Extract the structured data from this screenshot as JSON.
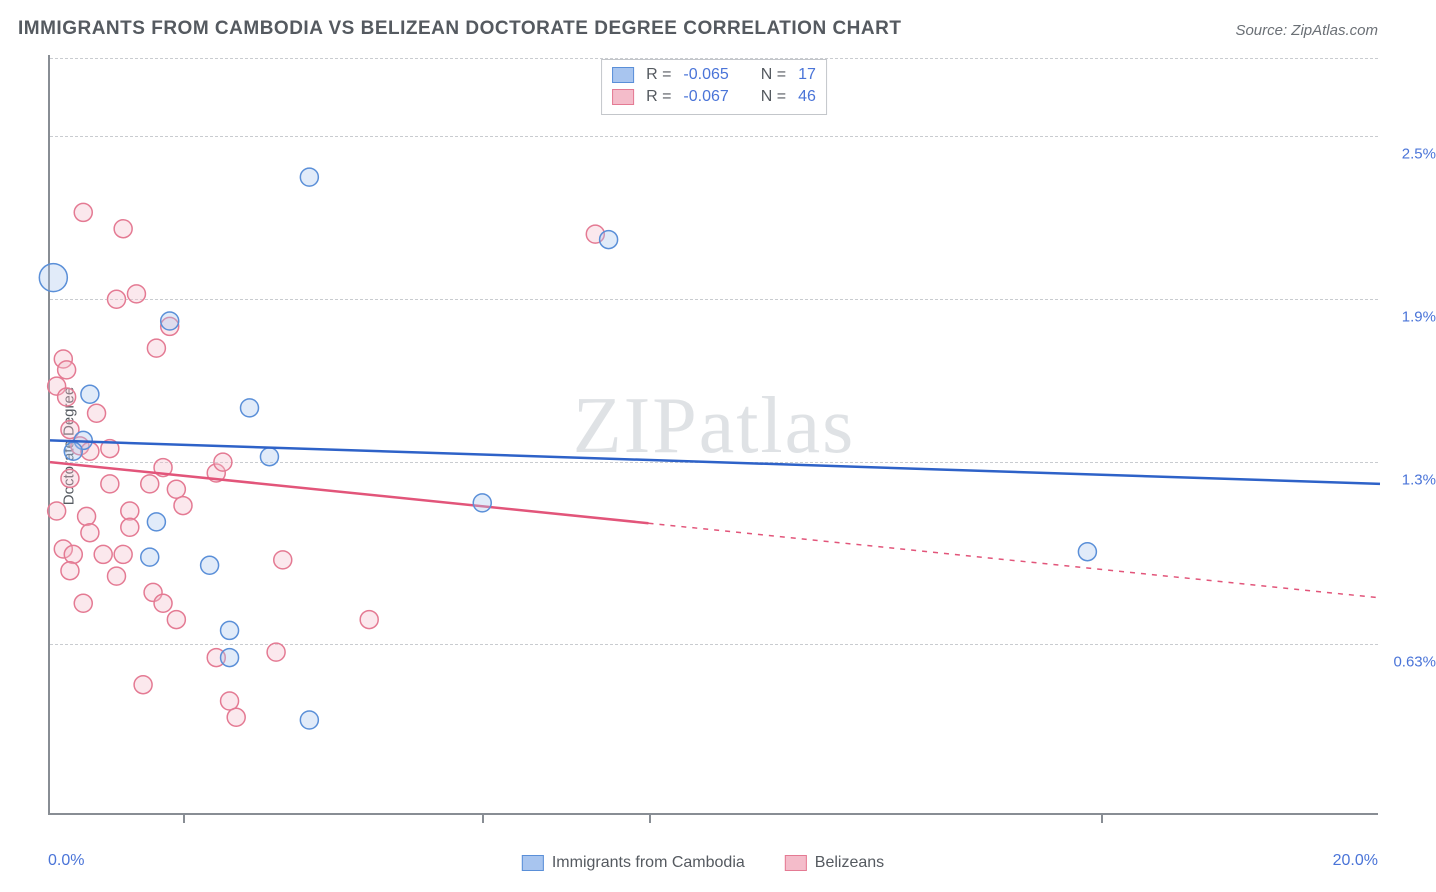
{
  "title": "IMMIGRANTS FROM CAMBODIA VS BELIZEAN DOCTORATE DEGREE CORRELATION CHART",
  "source": "Source: ZipAtlas.com",
  "watermark_a": "ZIP",
  "watermark_b": "atlas",
  "ylabel": "Doctorate Degree",
  "chart": {
    "type": "scatter",
    "x_min": 0.0,
    "x_max": 20.0,
    "y_min": 0.0,
    "y_max": 2.8,
    "x_axis_label_min": "0.0%",
    "x_axis_label_max": "20.0%",
    "y_ticks": [
      {
        "v": 0.63,
        "label": "0.63%"
      },
      {
        "v": 1.3,
        "label": "1.3%"
      },
      {
        "v": 1.9,
        "label": "1.9%"
      },
      {
        "v": 2.5,
        "label": "2.5%"
      }
    ],
    "x_tick_marks": [
      2.0,
      6.5,
      9.0,
      15.8
    ],
    "background_color": "#ffffff",
    "grid_color": "#c9ccd0",
    "axis_color": "#888d94"
  },
  "series": {
    "cambodia": {
      "label": "Immigrants from Cambodia",
      "fill": "#a8c5ef",
      "stroke": "#5a8fd8",
      "line_color": "#2e62c8",
      "r_value": "-0.065",
      "n_value": "17",
      "radius": 9,
      "regression": {
        "x1": 0.0,
        "y1": 1.38,
        "x2": 20.0,
        "y2": 1.22,
        "solid_until_x": 20.0
      },
      "points": [
        {
          "x": 0.05,
          "y": 1.98,
          "r": 14
        },
        {
          "x": 0.6,
          "y": 1.55
        },
        {
          "x": 0.5,
          "y": 1.38
        },
        {
          "x": 1.8,
          "y": 1.82
        },
        {
          "x": 3.0,
          "y": 1.5
        },
        {
          "x": 3.3,
          "y": 1.32
        },
        {
          "x": 3.9,
          "y": 2.35
        },
        {
          "x": 6.5,
          "y": 1.15
        },
        {
          "x": 1.6,
          "y": 1.08
        },
        {
          "x": 1.5,
          "y": 0.95
        },
        {
          "x": 2.4,
          "y": 0.92
        },
        {
          "x": 2.7,
          "y": 0.68
        },
        {
          "x": 2.7,
          "y": 0.58
        },
        {
          "x": 3.9,
          "y": 0.35
        },
        {
          "x": 8.4,
          "y": 2.12
        },
        {
          "x": 15.6,
          "y": 0.97
        },
        {
          "x": 0.35,
          "y": 1.34
        }
      ]
    },
    "belize": {
      "label": "Belizeans",
      "fill": "#f4bcca",
      "stroke": "#e47a93",
      "line_color": "#e2557a",
      "r_value": "-0.067",
      "n_value": "46",
      "radius": 9,
      "regression": {
        "x1": 0.0,
        "y1": 1.3,
        "x2": 20.0,
        "y2": 0.8,
        "solid_until_x": 9.0
      },
      "points": [
        {
          "x": 0.5,
          "y": 2.22
        },
        {
          "x": 1.1,
          "y": 2.16
        },
        {
          "x": 0.2,
          "y": 1.68
        },
        {
          "x": 0.25,
          "y": 1.64
        },
        {
          "x": 0.1,
          "y": 1.58
        },
        {
          "x": 0.3,
          "y": 1.42
        },
        {
          "x": 1.3,
          "y": 1.92
        },
        {
          "x": 1.0,
          "y": 1.9
        },
        {
          "x": 1.6,
          "y": 1.72
        },
        {
          "x": 1.8,
          "y": 1.8
        },
        {
          "x": 0.7,
          "y": 1.48
        },
        {
          "x": 0.45,
          "y": 1.36
        },
        {
          "x": 0.6,
          "y": 1.34
        },
        {
          "x": 0.3,
          "y": 1.24
        },
        {
          "x": 0.9,
          "y": 1.22
        },
        {
          "x": 1.7,
          "y": 1.28
        },
        {
          "x": 1.5,
          "y": 1.22
        },
        {
          "x": 1.9,
          "y": 1.2
        },
        {
          "x": 0.1,
          "y": 1.12
        },
        {
          "x": 0.55,
          "y": 1.1
        },
        {
          "x": 0.6,
          "y": 1.04
        },
        {
          "x": 1.2,
          "y": 1.12
        },
        {
          "x": 1.2,
          "y": 1.06
        },
        {
          "x": 2.0,
          "y": 1.14
        },
        {
          "x": 2.5,
          "y": 1.26
        },
        {
          "x": 2.6,
          "y": 1.3
        },
        {
          "x": 0.2,
          "y": 0.98
        },
        {
          "x": 0.35,
          "y": 0.96
        },
        {
          "x": 0.8,
          "y": 0.96
        },
        {
          "x": 1.1,
          "y": 0.96
        },
        {
          "x": 0.3,
          "y": 0.9
        },
        {
          "x": 1.0,
          "y": 0.88
        },
        {
          "x": 1.55,
          "y": 0.82
        },
        {
          "x": 0.5,
          "y": 0.78
        },
        {
          "x": 1.7,
          "y": 0.78
        },
        {
          "x": 2.5,
          "y": 0.58
        },
        {
          "x": 3.5,
          "y": 0.94
        },
        {
          "x": 3.4,
          "y": 0.6
        },
        {
          "x": 4.8,
          "y": 0.72
        },
        {
          "x": 1.4,
          "y": 0.48
        },
        {
          "x": 1.9,
          "y": 0.72
        },
        {
          "x": 2.7,
          "y": 0.42
        },
        {
          "x": 2.8,
          "y": 0.36
        },
        {
          "x": 8.2,
          "y": 2.14
        },
        {
          "x": 0.9,
          "y": 1.35
        },
        {
          "x": 0.25,
          "y": 1.54
        }
      ]
    }
  },
  "legend_static": {
    "R": "R =",
    "N": "N ="
  }
}
